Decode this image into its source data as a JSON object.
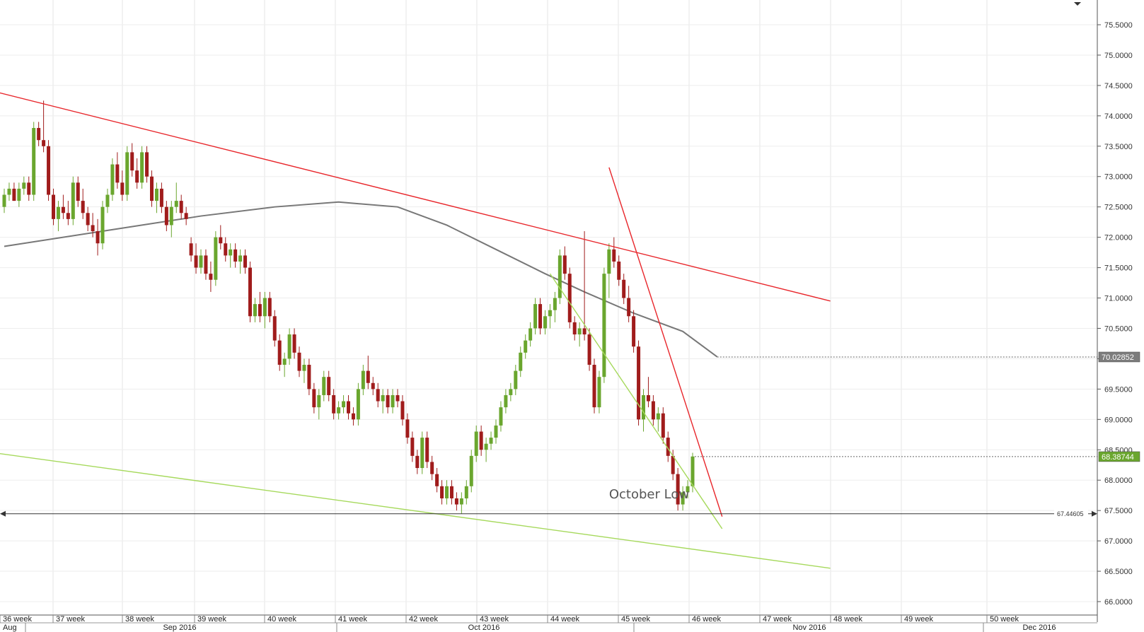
{
  "chart_data": {
    "type": "candlestick",
    "instrument_hint": "",
    "ylim": [
      65.6,
      75.9
    ],
    "y_ticks": [
      66.0,
      66.5,
      67.0,
      67.5,
      68.0,
      68.5,
      69.0,
      69.5,
      70.0,
      70.5,
      71.0,
      71.5,
      72.0,
      72.5,
      73.0,
      73.5,
      74.0,
      74.5,
      75.0,
      75.5
    ],
    "x_week_labels": [
      "36 week",
      "37 week",
      "38 week",
      "39 week",
      "40 week",
      "41 week",
      "42 week",
      "43 week",
      "44 week",
      "45 week",
      "46 week",
      "47 week",
      "48 week",
      "49 week",
      "50 week"
    ],
    "x_month_labels": [
      "Aug",
      "Sep 2016",
      "Oct 2016",
      "Nov 2016",
      "Dec 2016"
    ],
    "candles": [
      [
        72.5,
        72.8,
        72.4,
        72.7
      ],
      [
        72.7,
        72.9,
        72.6,
        72.8
      ],
      [
        72.8,
        72.9,
        72.6,
        72.6
      ],
      [
        72.6,
        72.9,
        72.5,
        72.8
      ],
      [
        72.8,
        73.0,
        72.7,
        72.9
      ],
      [
        72.9,
        73.0,
        72.6,
        72.7
      ],
      [
        72.7,
        73.9,
        72.6,
        73.8
      ],
      [
        73.8,
        73.9,
        73.5,
        73.6
      ],
      [
        73.6,
        74.25,
        73.4,
        73.5
      ],
      [
        73.5,
        73.6,
        72.6,
        72.7
      ],
      [
        72.7,
        72.8,
        72.2,
        72.3
      ],
      [
        72.3,
        72.6,
        72.1,
        72.5
      ],
      [
        72.5,
        72.7,
        72.3,
        72.4
      ],
      [
        72.4,
        72.6,
        72.2,
        72.3
      ],
      [
        72.3,
        73.0,
        72.2,
        72.9
      ],
      [
        72.9,
        73.0,
        72.5,
        72.6
      ],
      [
        72.6,
        72.8,
        72.3,
        72.4
      ],
      [
        72.4,
        72.5,
        72.1,
        72.2
      ],
      [
        72.2,
        72.4,
        72.0,
        72.1
      ],
      [
        72.1,
        72.3,
        71.7,
        71.9
      ],
      [
        71.9,
        72.6,
        71.8,
        72.5
      ],
      [
        72.5,
        72.8,
        72.4,
        72.7
      ],
      [
        72.7,
        73.3,
        72.6,
        73.2
      ],
      [
        73.2,
        73.4,
        72.8,
        72.9
      ],
      [
        72.9,
        73.1,
        72.6,
        72.7
      ],
      [
        72.7,
        73.5,
        72.6,
        73.4
      ],
      [
        73.4,
        73.55,
        73.0,
        73.1
      ],
      [
        73.1,
        73.3,
        72.8,
        72.9
      ],
      [
        72.9,
        73.5,
        72.8,
        73.4
      ],
      [
        73.4,
        73.5,
        72.9,
        73.0
      ],
      [
        73.0,
        73.1,
        72.5,
        72.6
      ],
      [
        72.6,
        72.9,
        72.4,
        72.8
      ],
      [
        72.8,
        72.9,
        72.4,
        72.5
      ],
      [
        72.5,
        72.6,
        72.1,
        72.2
      ],
      [
        72.2,
        72.6,
        72.0,
        72.5
      ],
      [
        72.5,
        72.9,
        72.4,
        72.6
      ],
      [
        72.6,
        72.7,
        72.3,
        72.4
      ],
      [
        72.4,
        72.5,
        72.2,
        72.3
      ],
      [
        71.9,
        72.0,
        71.6,
        71.7
      ],
      [
        71.7,
        71.9,
        71.4,
        71.5
      ],
      [
        71.5,
        71.8,
        71.4,
        71.7
      ],
      [
        71.7,
        71.8,
        71.3,
        71.4
      ],
      [
        71.4,
        71.6,
        71.1,
        71.3
      ],
      [
        71.3,
        72.1,
        71.2,
        72.0
      ],
      [
        72.0,
        72.2,
        71.8,
        71.9
      ],
      [
        71.9,
        72.0,
        71.6,
        71.7
      ],
      [
        71.7,
        71.9,
        71.5,
        71.8
      ],
      [
        71.8,
        71.9,
        71.5,
        71.6
      ],
      [
        71.6,
        71.8,
        71.4,
        71.7
      ],
      [
        71.7,
        71.8,
        71.4,
        71.5
      ],
      [
        71.5,
        71.6,
        70.6,
        70.7
      ],
      [
        70.7,
        71.0,
        70.6,
        70.9
      ],
      [
        70.9,
        71.1,
        70.6,
        70.7
      ],
      [
        70.7,
        71.1,
        70.5,
        71.0
      ],
      [
        71.0,
        71.1,
        70.6,
        70.7
      ],
      [
        70.7,
        70.8,
        70.2,
        70.3
      ],
      [
        70.3,
        70.4,
        69.8,
        69.9
      ],
      [
        69.9,
        70.1,
        69.7,
        70.0
      ],
      [
        70.0,
        70.5,
        69.9,
        70.4
      ],
      [
        70.4,
        70.5,
        70.0,
        70.1
      ],
      [
        70.1,
        70.2,
        69.7,
        69.8
      ],
      [
        69.8,
        70.0,
        69.6,
        69.9
      ],
      [
        69.9,
        70.0,
        69.4,
        69.5
      ],
      [
        69.5,
        69.6,
        69.1,
        69.2
      ],
      [
        69.2,
        69.5,
        69.0,
        69.4
      ],
      [
        69.4,
        69.8,
        69.3,
        69.7
      ],
      [
        69.7,
        69.8,
        69.3,
        69.4
      ],
      [
        69.4,
        69.5,
        69.0,
        69.1
      ],
      [
        69.1,
        69.3,
        69.0,
        69.2
      ],
      [
        69.2,
        69.4,
        69.1,
        69.3
      ],
      [
        69.3,
        69.4,
        69.0,
        69.1
      ],
      [
        69.1,
        69.2,
        68.9,
        69.0
      ],
      [
        69.0,
        69.6,
        68.9,
        69.5
      ],
      [
        69.5,
        69.9,
        69.4,
        69.8
      ],
      [
        69.8,
        70.05,
        69.5,
        69.6
      ],
      [
        69.6,
        69.7,
        69.4,
        69.5
      ],
      [
        69.5,
        69.6,
        69.2,
        69.3
      ],
      [
        69.3,
        69.5,
        69.1,
        69.4
      ],
      [
        69.4,
        69.5,
        69.1,
        69.2
      ],
      [
        69.2,
        69.5,
        69.1,
        69.4
      ],
      [
        69.4,
        69.5,
        69.2,
        69.3
      ],
      [
        69.3,
        69.4,
        68.9,
        69.0
      ],
      [
        69.0,
        69.1,
        68.6,
        68.7
      ],
      [
        68.7,
        68.8,
        68.3,
        68.4
      ],
      [
        68.4,
        68.5,
        68.1,
        68.2
      ],
      [
        68.2,
        68.8,
        68.1,
        68.7
      ],
      [
        68.7,
        68.8,
        68.2,
        68.3
      ],
      [
        68.3,
        68.4,
        68.0,
        68.1
      ],
      [
        68.1,
        68.2,
        67.8,
        67.9
      ],
      [
        67.9,
        68.0,
        67.6,
        67.7
      ],
      [
        67.7,
        68.0,
        67.6,
        67.9
      ],
      [
        67.9,
        68.0,
        67.6,
        67.7
      ],
      [
        67.7,
        67.8,
        67.5,
        67.6
      ],
      [
        67.6,
        67.8,
        67.45,
        67.7
      ],
      [
        67.7,
        68.0,
        67.6,
        67.9
      ],
      [
        67.9,
        68.5,
        67.8,
        68.4
      ],
      [
        68.4,
        68.9,
        68.3,
        68.8
      ],
      [
        68.8,
        68.9,
        68.4,
        68.5
      ],
      [
        68.5,
        68.7,
        68.3,
        68.6
      ],
      [
        68.6,
        68.8,
        68.5,
        68.7
      ],
      [
        68.7,
        69.0,
        68.6,
        68.9
      ],
      [
        68.9,
        69.3,
        68.8,
        69.2
      ],
      [
        69.2,
        69.5,
        69.1,
        69.4
      ],
      [
        69.4,
        69.6,
        69.3,
        69.5
      ],
      [
        69.5,
        69.9,
        69.4,
        69.8
      ],
      [
        69.8,
        70.2,
        69.7,
        70.1
      ],
      [
        70.1,
        70.4,
        70.0,
        70.3
      ],
      [
        70.3,
        70.6,
        70.2,
        70.5
      ],
      [
        70.5,
        71.0,
        70.4,
        70.9
      ],
      [
        70.9,
        71.0,
        70.4,
        70.5
      ],
      [
        70.5,
        70.8,
        70.4,
        70.7
      ],
      [
        70.7,
        70.9,
        70.5,
        70.8
      ],
      [
        70.8,
        71.1,
        70.6,
        71.0
      ],
      [
        71.0,
        71.8,
        70.9,
        71.7
      ],
      [
        71.7,
        71.85,
        71.3,
        71.4
      ],
      [
        71.4,
        71.5,
        70.5,
        70.6
      ],
      [
        70.6,
        70.7,
        70.3,
        70.4
      ],
      [
        70.4,
        70.6,
        70.2,
        70.5
      ],
      [
        70.5,
        72.1,
        70.3,
        70.4
      ],
      [
        70.4,
        70.5,
        69.8,
        69.9
      ],
      [
        69.9,
        70.0,
        69.1,
        69.2
      ],
      [
        69.2,
        69.8,
        69.1,
        69.7
      ],
      [
        69.7,
        71.5,
        69.6,
        71.4
      ],
      [
        71.4,
        71.9,
        71.0,
        71.8
      ],
      [
        71.8,
        72.0,
        71.5,
        71.6
      ],
      [
        71.6,
        71.7,
        71.2,
        71.3
      ],
      [
        71.3,
        71.4,
        70.9,
        71.0
      ],
      [
        71.0,
        71.2,
        70.6,
        70.7
      ],
      [
        70.7,
        70.8,
        70.1,
        70.2
      ],
      [
        70.2,
        70.3,
        68.9,
        69.0
      ],
      [
        69.0,
        69.5,
        68.8,
        69.4
      ],
      [
        69.4,
        69.7,
        69.2,
        69.3
      ],
      [
        69.3,
        69.4,
        68.9,
        69.0
      ],
      [
        69.0,
        69.2,
        68.8,
        69.1
      ],
      [
        69.1,
        69.2,
        68.6,
        68.7
      ],
      [
        68.7,
        68.8,
        68.3,
        68.4
      ],
      [
        68.4,
        68.5,
        68.0,
        68.1
      ],
      [
        68.1,
        68.2,
        67.5,
        67.6
      ],
      [
        67.6,
        67.9,
        67.5,
        67.8
      ],
      [
        67.8,
        68.0,
        67.7,
        67.9
      ],
      [
        67.9,
        68.45,
        67.8,
        68.39
      ]
    ],
    "moving_average": [
      [
        0,
        71.85
      ],
      [
        20,
        72.1
      ],
      [
        40,
        72.35
      ],
      [
        55,
        72.5
      ],
      [
        68,
        72.58
      ],
      [
        80,
        72.5
      ],
      [
        90,
        72.2
      ],
      [
        100,
        71.8
      ],
      [
        110,
        71.4
      ],
      [
        118,
        71.1
      ],
      [
        128,
        70.75
      ],
      [
        138,
        70.45
      ],
      [
        145,
        70.03
      ]
    ],
    "trendlines": [
      {
        "color": "#e8262b",
        "points": [
          [
            -2,
            74.4
          ],
          [
            168,
            70.95
          ]
        ]
      },
      {
        "color": "#e8262b",
        "points": [
          [
            123,
            73.15
          ],
          [
            146,
            67.4
          ]
        ]
      },
      {
        "color": "#a6d95c",
        "points": [
          [
            -2,
            68.45
          ],
          [
            168,
            66.55
          ]
        ]
      },
      {
        "color": "#a6d95c",
        "points": [
          [
            111,
            71.4
          ],
          [
            146,
            67.2
          ]
        ]
      }
    ],
    "horizontal_level": {
      "value": 67.44605,
      "label": "67.44605"
    },
    "annotation": {
      "text": "October Low",
      "x": 123,
      "y": 67.7
    },
    "price_tags": [
      {
        "label": "70.02852",
        "value": 70.02852,
        "bg": "#7c7c7c"
      },
      {
        "label": "68.38744",
        "value": 68.38744,
        "bg": "#6aa62e"
      }
    ]
  }
}
